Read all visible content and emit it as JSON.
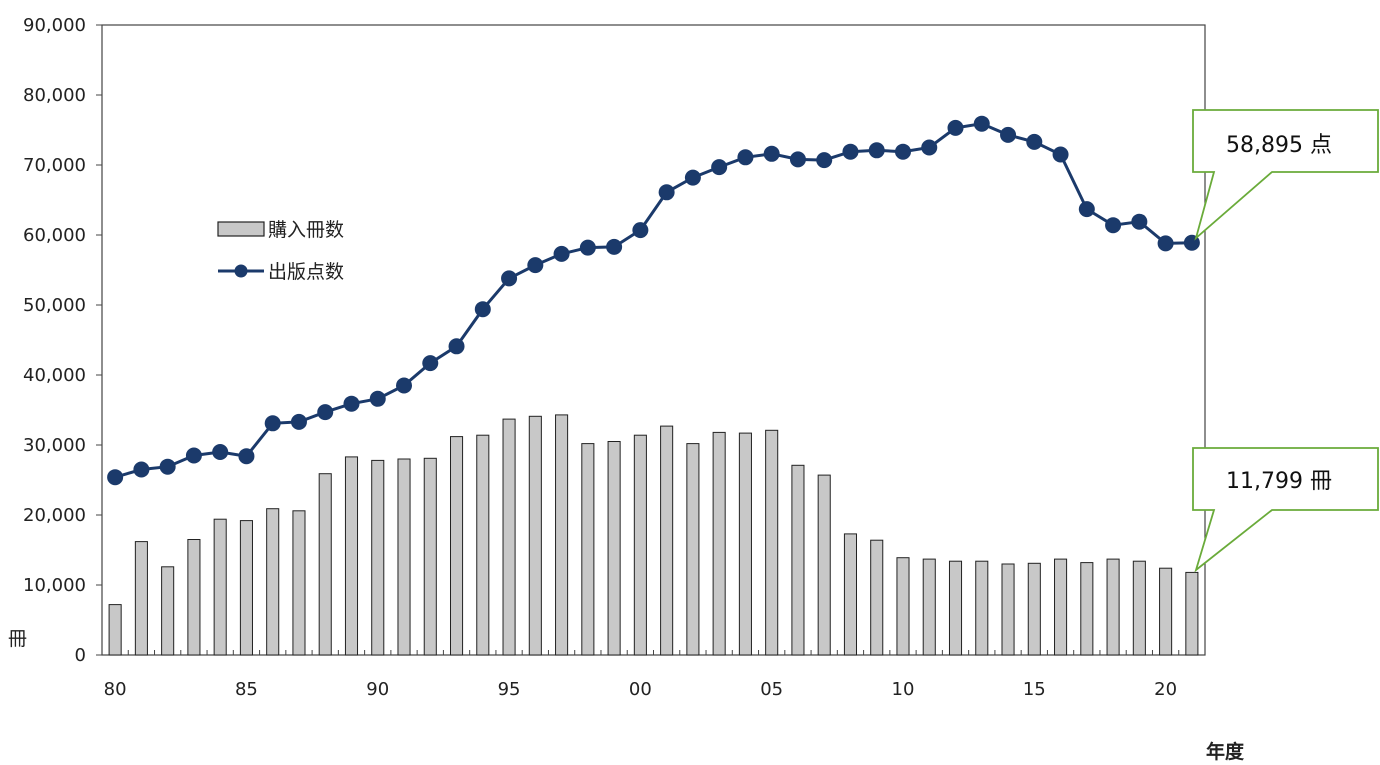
{
  "chart_data": {
    "type": "bar",
    "x": [
      "80",
      "81",
      "82",
      "83",
      "84",
      "85",
      "86",
      "87",
      "88",
      "89",
      "90",
      "91",
      "92",
      "93",
      "94",
      "95",
      "96",
      "97",
      "98",
      "99",
      "00",
      "01",
      "02",
      "03",
      "04",
      "05",
      "06",
      "07",
      "08",
      "09",
      "10",
      "11",
      "12",
      "13",
      "14",
      "15",
      "16",
      "17",
      "18",
      "19",
      "20",
      "21"
    ],
    "x_tick_labels": [
      "80",
      "85",
      "90",
      "95",
      "00",
      "05",
      "10",
      "15",
      "20"
    ],
    "x_tick_positions": [
      "80",
      "85",
      "90",
      "95",
      "00",
      "05",
      "10",
      "15",
      "20"
    ],
    "xlabel": "年度",
    "ylabel": "冊",
    "ylim": [
      0,
      90000
    ],
    "y_ticks": [
      0,
      10000,
      20000,
      30000,
      40000,
      50000,
      60000,
      70000,
      80000,
      90000
    ],
    "y_tick_labels": [
      "0",
      "10,000",
      "20,000",
      "30,000",
      "40,000",
      "50,000",
      "60,000",
      "70,000",
      "80,000",
      "90,000"
    ],
    "grid": false,
    "legend_position": "left",
    "series": [
      {
        "name": "購入冊数",
        "type": "bar",
        "color": "#c8c8c8",
        "values": [
          7200,
          16200,
          12600,
          16500,
          19400,
          19200,
          20900,
          20600,
          25900,
          28300,
          27800,
          28000,
          28100,
          31200,
          31400,
          33700,
          34100,
          34300,
          30200,
          30500,
          31400,
          32700,
          30200,
          31800,
          31700,
          32100,
          27100,
          25700,
          17300,
          16400,
          13900,
          13700,
          13400,
          13400,
          13000,
          13100,
          13700,
          13200,
          13700,
          13400,
          12400,
          11799
        ]
      },
      {
        "name": "出版点数",
        "type": "line",
        "color": "#1b3a6b",
        "values": [
          25400,
          26500,
          26900,
          28500,
          29000,
          28400,
          33100,
          33300,
          34700,
          35900,
          36600,
          38500,
          41700,
          44100,
          49400,
          53800,
          55700,
          57300,
          58200,
          58300,
          60700,
          66100,
          68200,
          69700,
          71100,
          71600,
          70800,
          70700,
          71900,
          72100,
          71900,
          72500,
          75300,
          75900,
          74300,
          73300,
          71500,
          63700,
          61400,
          61900,
          58800,
          58895
        ]
      }
    ],
    "annotations": [
      {
        "text": "58,895 点",
        "series": "出版点数",
        "x": "21"
      },
      {
        "text": "11,799 冊",
        "series": "購入冊数",
        "x": "21"
      }
    ]
  },
  "legend": {
    "bar_label": "購入冊数",
    "line_label": "出版点数"
  },
  "axis": {
    "y_unit": "冊",
    "x_unit": "年度"
  },
  "callouts": {
    "line_value": "58,895 点",
    "bar_value": "11,799 冊"
  },
  "colors": {
    "bar_fill": "#c8c8c8",
    "bar_stroke": "#222222",
    "line": "#1b3a6b",
    "marker": "#1b3a6b",
    "callout_border": "#6aab3a"
  }
}
